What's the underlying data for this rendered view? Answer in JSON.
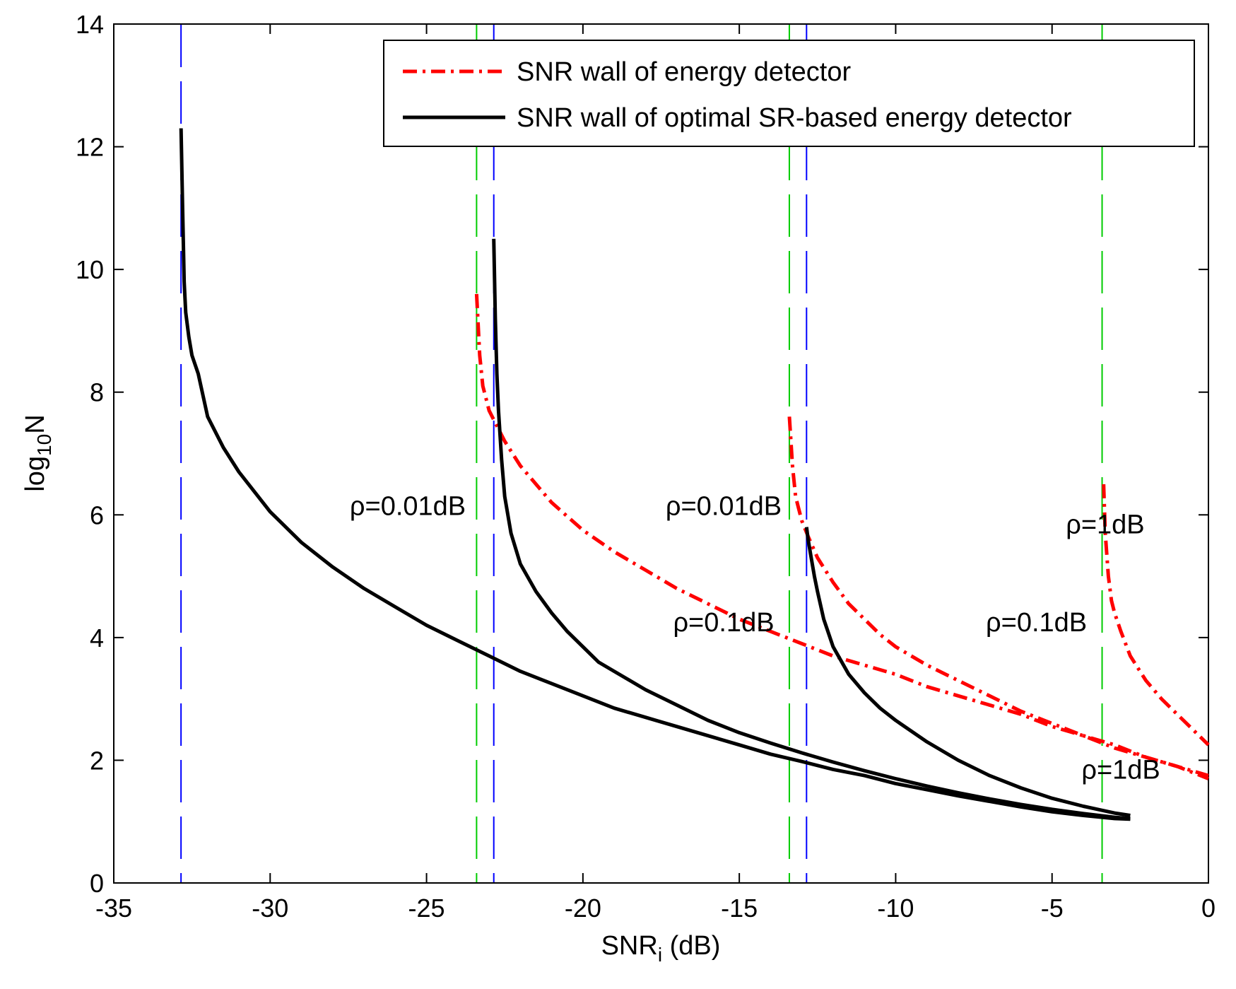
{
  "chart_data": {
    "type": "line",
    "title": "",
    "xlabel": "SNR",
    "xlabel_sub": "i",
    "xlabel_unit": " (dB)",
    "ylabel_pre": "log",
    "ylabel_sub": "10",
    "ylabel_post": "N",
    "xlim": [
      -35,
      0
    ],
    "ylim": [
      0,
      14
    ],
    "xticks": [
      -35,
      -30,
      -25,
      -20,
      -15,
      -10,
      -5,
      0
    ],
    "yticks": [
      0,
      2,
      4,
      6,
      8,
      10,
      12,
      14
    ],
    "grid": false,
    "legend": {
      "position": "top-right",
      "entries": [
        {
          "label": "SNR wall of energy detector",
          "color": "#ff0000",
          "style": "dashdot"
        },
        {
          "label": "SNR wall of optimal SR-based energy detector",
          "color": "#000000",
          "style": "solid"
        }
      ]
    },
    "series": [
      {
        "name": "energy detector, ρ=0.01dB",
        "color": "#ff0000",
        "style": "dashdot",
        "x": [
          -23.4,
          -23.3,
          -23.2,
          -23.1,
          -23.0,
          -22.8,
          -22.5,
          -22.0,
          -21.0,
          -20.0,
          -19.0,
          -18.0,
          -17.0,
          -16.0,
          -15.0,
          -14.0,
          -13.0,
          -12.0,
          -11.0,
          -10.0,
          -9.0,
          -8.0,
          -7.0,
          -6.0,
          -5.0,
          -4.0,
          -3.0,
          -2.0,
          -1.0,
          0.0
        ],
        "y": [
          9.6,
          8.6,
          8.1,
          7.9,
          7.7,
          7.5,
          7.2,
          6.8,
          6.2,
          5.75,
          5.4,
          5.1,
          4.8,
          4.55,
          4.3,
          4.1,
          3.9,
          3.7,
          3.55,
          3.4,
          3.2,
          3.05,
          2.9,
          2.75,
          2.55,
          2.4,
          2.2,
          2.05,
          1.9,
          1.75
        ]
      },
      {
        "name": "energy detector, ρ=0.1dB",
        "color": "#ff0000",
        "style": "dashdot",
        "x": [
          -13.4,
          -13.3,
          -13.2,
          -13.1,
          -13.0,
          -12.8,
          -12.5,
          -12.0,
          -11.5,
          -11.0,
          -10.5,
          -10.0,
          -9.0,
          -8.0,
          -7.0,
          -6.0,
          -5.0,
          -4.0,
          -3.0,
          -2.0,
          -1.0,
          0.0
        ],
        "y": [
          7.6,
          6.8,
          6.3,
          6.1,
          5.9,
          5.65,
          5.3,
          4.9,
          4.55,
          4.3,
          4.05,
          3.85,
          3.55,
          3.3,
          3.05,
          2.8,
          2.6,
          2.4,
          2.25,
          2.05,
          1.9,
          1.7
        ]
      },
      {
        "name": "energy detector, ρ=1dB",
        "color": "#ff0000",
        "style": "dashdot",
        "x": [
          -3.35,
          -3.3,
          -3.2,
          -3.1,
          -3.0,
          -2.8,
          -2.5,
          -2.0,
          -1.5,
          -1.0,
          -0.5,
          0.0
        ],
        "y": [
          6.5,
          5.7,
          5.0,
          4.6,
          4.4,
          4.1,
          3.7,
          3.3,
          3.0,
          2.75,
          2.5,
          2.25
        ]
      },
      {
        "name": "SR-based detector, ρ=0.01dB",
        "color": "#000000",
        "style": "solid",
        "x": [
          -32.85,
          -32.8,
          -32.75,
          -32.7,
          -32.6,
          -32.5,
          -32.3,
          -32.0,
          -31.5,
          -31.0,
          -30.0,
          -29.0,
          -28.0,
          -27.0,
          -26.0,
          -25.0,
          -24.0,
          -23.0,
          -22.0,
          -21.0,
          -20.0,
          -19.0,
          -18.0,
          -17.0,
          -16.0,
          -15.0,
          -14.0,
          -13.0,
          -12.0,
          -11.0,
          -10.0,
          -9.0,
          -8.0,
          -7.0,
          -6.0,
          -5.0,
          -4.0,
          -3.0,
          -2.5
        ],
        "y": [
          12.3,
          11.0,
          9.8,
          9.3,
          8.9,
          8.6,
          8.3,
          7.6,
          7.1,
          6.7,
          6.05,
          5.55,
          5.15,
          4.8,
          4.5,
          4.2,
          3.95,
          3.7,
          3.45,
          3.25,
          3.05,
          2.85,
          2.7,
          2.55,
          2.4,
          2.25,
          2.1,
          1.98,
          1.85,
          1.75,
          1.62,
          1.52,
          1.42,
          1.33,
          1.24,
          1.16,
          1.1,
          1.05,
          1.04
        ]
      },
      {
        "name": "SR-based detector, ρ=0.1dB",
        "color": "#000000",
        "style": "solid",
        "x": [
          -22.85,
          -22.8,
          -22.75,
          -22.7,
          -22.6,
          -22.5,
          -22.3,
          -22.0,
          -21.5,
          -21.0,
          -20.5,
          -20.0,
          -19.5,
          -19.0,
          -18.0,
          -17.0,
          -16.0,
          -15.0,
          -14.0,
          -13.0,
          -12.0,
          -11.0,
          -10.0,
          -9.0,
          -8.0,
          -7.0,
          -6.0,
          -5.0,
          -4.0,
          -3.0,
          -2.5
        ],
        "y": [
          10.5,
          9.2,
          8.3,
          7.7,
          6.9,
          6.3,
          5.7,
          5.2,
          4.75,
          4.4,
          4.1,
          3.85,
          3.6,
          3.45,
          3.15,
          2.9,
          2.65,
          2.45,
          2.28,
          2.12,
          1.97,
          1.83,
          1.7,
          1.58,
          1.47,
          1.37,
          1.28,
          1.2,
          1.13,
          1.07,
          1.05
        ]
      },
      {
        "name": "SR-based detector, ρ=1dB",
        "color": "#000000",
        "style": "solid",
        "x": [
          -12.85,
          -12.8,
          -12.7,
          -12.6,
          -12.5,
          -12.3,
          -12.0,
          -11.5,
          -11.0,
          -10.5,
          -10.0,
          -9.0,
          -8.0,
          -7.0,
          -6.0,
          -5.0,
          -4.0,
          -3.0,
          -2.5
        ],
        "y": [
          5.8,
          5.6,
          5.3,
          5.0,
          4.75,
          4.3,
          3.85,
          3.4,
          3.1,
          2.85,
          2.65,
          2.3,
          2.0,
          1.75,
          1.55,
          1.38,
          1.25,
          1.14,
          1.1
        ]
      }
    ],
    "vlines": [
      {
        "x": -32.85,
        "color": "#0000ff",
        "style": "dashed"
      },
      {
        "x": -23.4,
        "color": "#00cc00",
        "style": "dashed"
      },
      {
        "x": -22.85,
        "color": "#0000ff",
        "style": "dashed"
      },
      {
        "x": -13.4,
        "color": "#00cc00",
        "style": "dashed"
      },
      {
        "x": -12.85,
        "color": "#0000ff",
        "style": "dashed"
      },
      {
        "x": -3.4,
        "color": "#00cc00",
        "style": "dashed"
      }
    ],
    "annotations": [
      {
        "x": -25.6,
        "y": 6.15,
        "text": "ρ=0.01dB"
      },
      {
        "x": -15.5,
        "y": 6.15,
        "text": "ρ=0.01dB"
      },
      {
        "x": -15.5,
        "y": 4.25,
        "text": "ρ=0.1dB"
      },
      {
        "x": -5.5,
        "y": 4.25,
        "text": "ρ=0.1dB"
      },
      {
        "x": -3.3,
        "y": 5.85,
        "text": "ρ=1dB"
      },
      {
        "x": -2.8,
        "y": 1.85,
        "text": "ρ=1dB"
      }
    ]
  }
}
